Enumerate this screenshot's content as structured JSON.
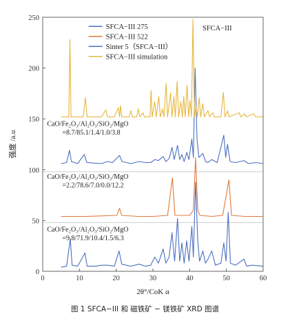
{
  "chart_data": {
    "type": "line",
    "xlabel": "2θ°/CoK α",
    "ylabel": "强度 /a.u",
    "xlim": [
      0,
      60
    ],
    "ylim": [
      0,
      250
    ],
    "xticks": [
      0,
      10,
      20,
      30,
      40,
      50,
      60
    ],
    "yticks": [
      0,
      50,
      100,
      150,
      200,
      250
    ],
    "inset_label": "SFCA−III",
    "legend_position": "top-center",
    "series": [
      {
        "name": "SFCA−III 275",
        "color": "#4a6fc0",
        "baseline": 106,
        "points": [
          [
            5.0,
            106
          ],
          [
            6.5,
            107
          ],
          [
            7.3,
            119
          ],
          [
            7.8,
            108
          ],
          [
            9.5,
            106
          ],
          [
            11.3,
            115
          ],
          [
            12.0,
            107
          ],
          [
            16.0,
            106
          ],
          [
            17.6,
            108
          ],
          [
            19.0,
            107
          ],
          [
            20.9,
            114
          ],
          [
            21.6,
            108
          ],
          [
            24.0,
            106
          ],
          [
            26.2,
            108
          ],
          [
            28.0,
            107
          ],
          [
            29.4,
            107
          ],
          [
            30.5,
            110
          ],
          [
            31.5,
            109
          ],
          [
            32.8,
            113
          ],
          [
            33.5,
            108
          ],
          [
            34.4,
            111
          ],
          [
            35.2,
            122
          ],
          [
            35.8,
            110
          ],
          [
            36.7,
            124
          ],
          [
            37.3,
            110
          ],
          [
            37.9,
            115
          ],
          [
            38.5,
            108
          ],
          [
            39.2,
            117
          ],
          [
            39.8,
            110
          ],
          [
            40.6,
            130
          ],
          [
            41.0,
            112
          ],
          [
            41.5,
            200
          ],
          [
            42.0,
            130
          ],
          [
            42.5,
            112
          ],
          [
            43.6,
            116
          ],
          [
            44.3,
            108
          ],
          [
            45.0,
            107
          ],
          [
            46.0,
            110
          ],
          [
            47.5,
            107
          ],
          [
            49.3,
            134
          ],
          [
            49.8,
            112
          ],
          [
            50.3,
            125
          ],
          [
            51.0,
            108
          ],
          [
            52.5,
            107
          ],
          [
            54.8,
            109
          ],
          [
            56.0,
            106
          ],
          [
            58.0,
            107
          ],
          [
            60.0,
            106
          ]
        ]
      },
      {
        "name": "SFCA−III 522",
        "color": "#e07a3c",
        "baseline": 54,
        "points": [
          [
            5.0,
            54
          ],
          [
            12.0,
            54
          ],
          [
            20.2,
            55
          ],
          [
            20.9,
            62
          ],
          [
            21.5,
            55
          ],
          [
            26.0,
            54
          ],
          [
            30.0,
            54
          ],
          [
            34.0,
            55
          ],
          [
            35.3,
            92
          ],
          [
            36.0,
            55
          ],
          [
            40.0,
            55
          ],
          [
            41.0,
            60
          ],
          [
            41.6,
            112
          ],
          [
            42.2,
            60
          ],
          [
            42.8,
            55
          ],
          [
            46.0,
            54
          ],
          [
            49.0,
            55
          ],
          [
            50.7,
            90
          ],
          [
            51.4,
            55
          ],
          [
            55.0,
            54
          ],
          [
            60.0,
            54
          ]
        ]
      },
      {
        "name": "Sinter 5（SFCA−III）",
        "color": "#4a6fc0",
        "baseline": 4,
        "points": [
          [
            5.0,
            4
          ],
          [
            6.5,
            5
          ],
          [
            7.5,
            32
          ],
          [
            8.0,
            6
          ],
          [
            9.5,
            5
          ],
          [
            11.5,
            18
          ],
          [
            12.1,
            5
          ],
          [
            14.5,
            5
          ],
          [
            16.0,
            6
          ],
          [
            17.7,
            6
          ],
          [
            19.5,
            5
          ],
          [
            20.8,
            20
          ],
          [
            21.5,
            7
          ],
          [
            24.0,
            5
          ],
          [
            26.2,
            7
          ],
          [
            28.0,
            5
          ],
          [
            29.4,
            6
          ],
          [
            30.5,
            14
          ],
          [
            31.5,
            8
          ],
          [
            32.8,
            22
          ],
          [
            33.5,
            8
          ],
          [
            34.4,
            14
          ],
          [
            35.2,
            38
          ],
          [
            35.9,
            10
          ],
          [
            36.7,
            52
          ],
          [
            37.3,
            10
          ],
          [
            37.9,
            28
          ],
          [
            38.5,
            8
          ],
          [
            39.2,
            30
          ],
          [
            39.8,
            10
          ],
          [
            40.6,
            44
          ],
          [
            41.0,
            14
          ],
          [
            41.6,
            88
          ],
          [
            42.2,
            30
          ],
          [
            42.7,
            10
          ],
          [
            43.6,
            20
          ],
          [
            44.3,
            8
          ],
          [
            45.0,
            12
          ],
          [
            46.0,
            20
          ],
          [
            47.0,
            6
          ],
          [
            48.5,
            8
          ],
          [
            49.3,
            28
          ],
          [
            49.9,
            10
          ],
          [
            50.5,
            58
          ],
          [
            51.1,
            8
          ],
          [
            52.5,
            6
          ],
          [
            54.8,
            12
          ],
          [
            55.5,
            5
          ],
          [
            57.0,
            6
          ],
          [
            60.0,
            5
          ]
        ]
      },
      {
        "name": "SFCA−III simulation",
        "color": "#e7b73a",
        "baseline": 152,
        "points": [
          [
            5.0,
            152
          ],
          [
            7.1,
            152
          ],
          [
            7.4,
            228
          ],
          [
            7.7,
            152
          ],
          [
            11.0,
            152
          ],
          [
            11.6,
            171
          ],
          [
            12.1,
            152
          ],
          [
            16.0,
            152
          ],
          [
            17.2,
            159
          ],
          [
            17.6,
            152
          ],
          [
            19.5,
            152
          ],
          [
            20.6,
            161
          ],
          [
            20.9,
            152
          ],
          [
            21.2,
            163
          ],
          [
            21.5,
            152
          ],
          [
            23.5,
            152
          ],
          [
            24.0,
            158
          ],
          [
            24.4,
            152
          ],
          [
            25.6,
            152
          ],
          [
            26.0,
            160
          ],
          [
            26.4,
            152
          ],
          [
            27.3,
            156
          ],
          [
            27.7,
            152
          ],
          [
            29.2,
            152
          ],
          [
            29.5,
            178
          ],
          [
            29.8,
            152
          ],
          [
            30.5,
            167
          ],
          [
            30.9,
            152
          ],
          [
            31.6,
            172
          ],
          [
            32.0,
            152
          ],
          [
            32.6,
            160
          ],
          [
            33.0,
            152
          ],
          [
            33.6,
            185
          ],
          [
            34.0,
            152
          ],
          [
            34.8,
            176
          ],
          [
            35.2,
            152
          ],
          [
            35.7,
            172
          ],
          [
            36.1,
            152
          ],
          [
            36.6,
            187
          ],
          [
            37.0,
            152
          ],
          [
            37.6,
            167
          ],
          [
            38.0,
            152
          ],
          [
            38.4,
            172
          ],
          [
            38.8,
            152
          ],
          [
            39.3,
            183
          ],
          [
            39.7,
            152
          ],
          [
            40.1,
            168
          ],
          [
            40.5,
            152
          ],
          [
            40.9,
            248
          ],
          [
            41.3,
            152
          ],
          [
            41.7,
            162
          ],
          [
            42.1,
            152
          ],
          [
            42.6,
            171
          ],
          [
            43.0,
            152
          ],
          [
            43.6,
            165
          ],
          [
            44.0,
            152
          ],
          [
            45.0,
            158
          ],
          [
            45.4,
            152
          ],
          [
            46.3,
            156
          ],
          [
            46.7,
            152
          ],
          [
            48.5,
            152
          ],
          [
            49.2,
            176
          ],
          [
            49.6,
            152
          ],
          [
            50.3,
            158
          ],
          [
            50.7,
            152
          ],
          [
            53.5,
            156
          ],
          [
            53.9,
            152
          ],
          [
            55.0,
            155
          ],
          [
            55.4,
            152
          ],
          [
            57.5,
            155
          ],
          [
            57.9,
            152
          ],
          [
            60.0,
            152
          ]
        ]
      }
    ],
    "annotations": [
      {
        "lines": [
          "CaO/Fe₂O₃/Al₂O₃/SiO₂/MgO",
          "=8.7/85.1/1.4/1.0/3.8"
        ],
        "x": 1.2,
        "y": 143
      },
      {
        "lines": [
          "CaO/Fe₂O₃/Al₂O₃/SiO₂/MgO",
          "=2.2/78.6/7.0/0.0/12.2"
        ],
        "x": 1.2,
        "y": 91
      },
      {
        "lines": [
          "CaO/Fe₂O₃/Al₂O₃/SiO₂/MgO",
          "=9.8/71.9/10.4/1.5/6.3"
        ],
        "x": 1.2,
        "y": 39
      }
    ]
  },
  "caption": "图 1  SFCA−III 和 磁铁矿 − 镁铁矿 XRD 图谱"
}
